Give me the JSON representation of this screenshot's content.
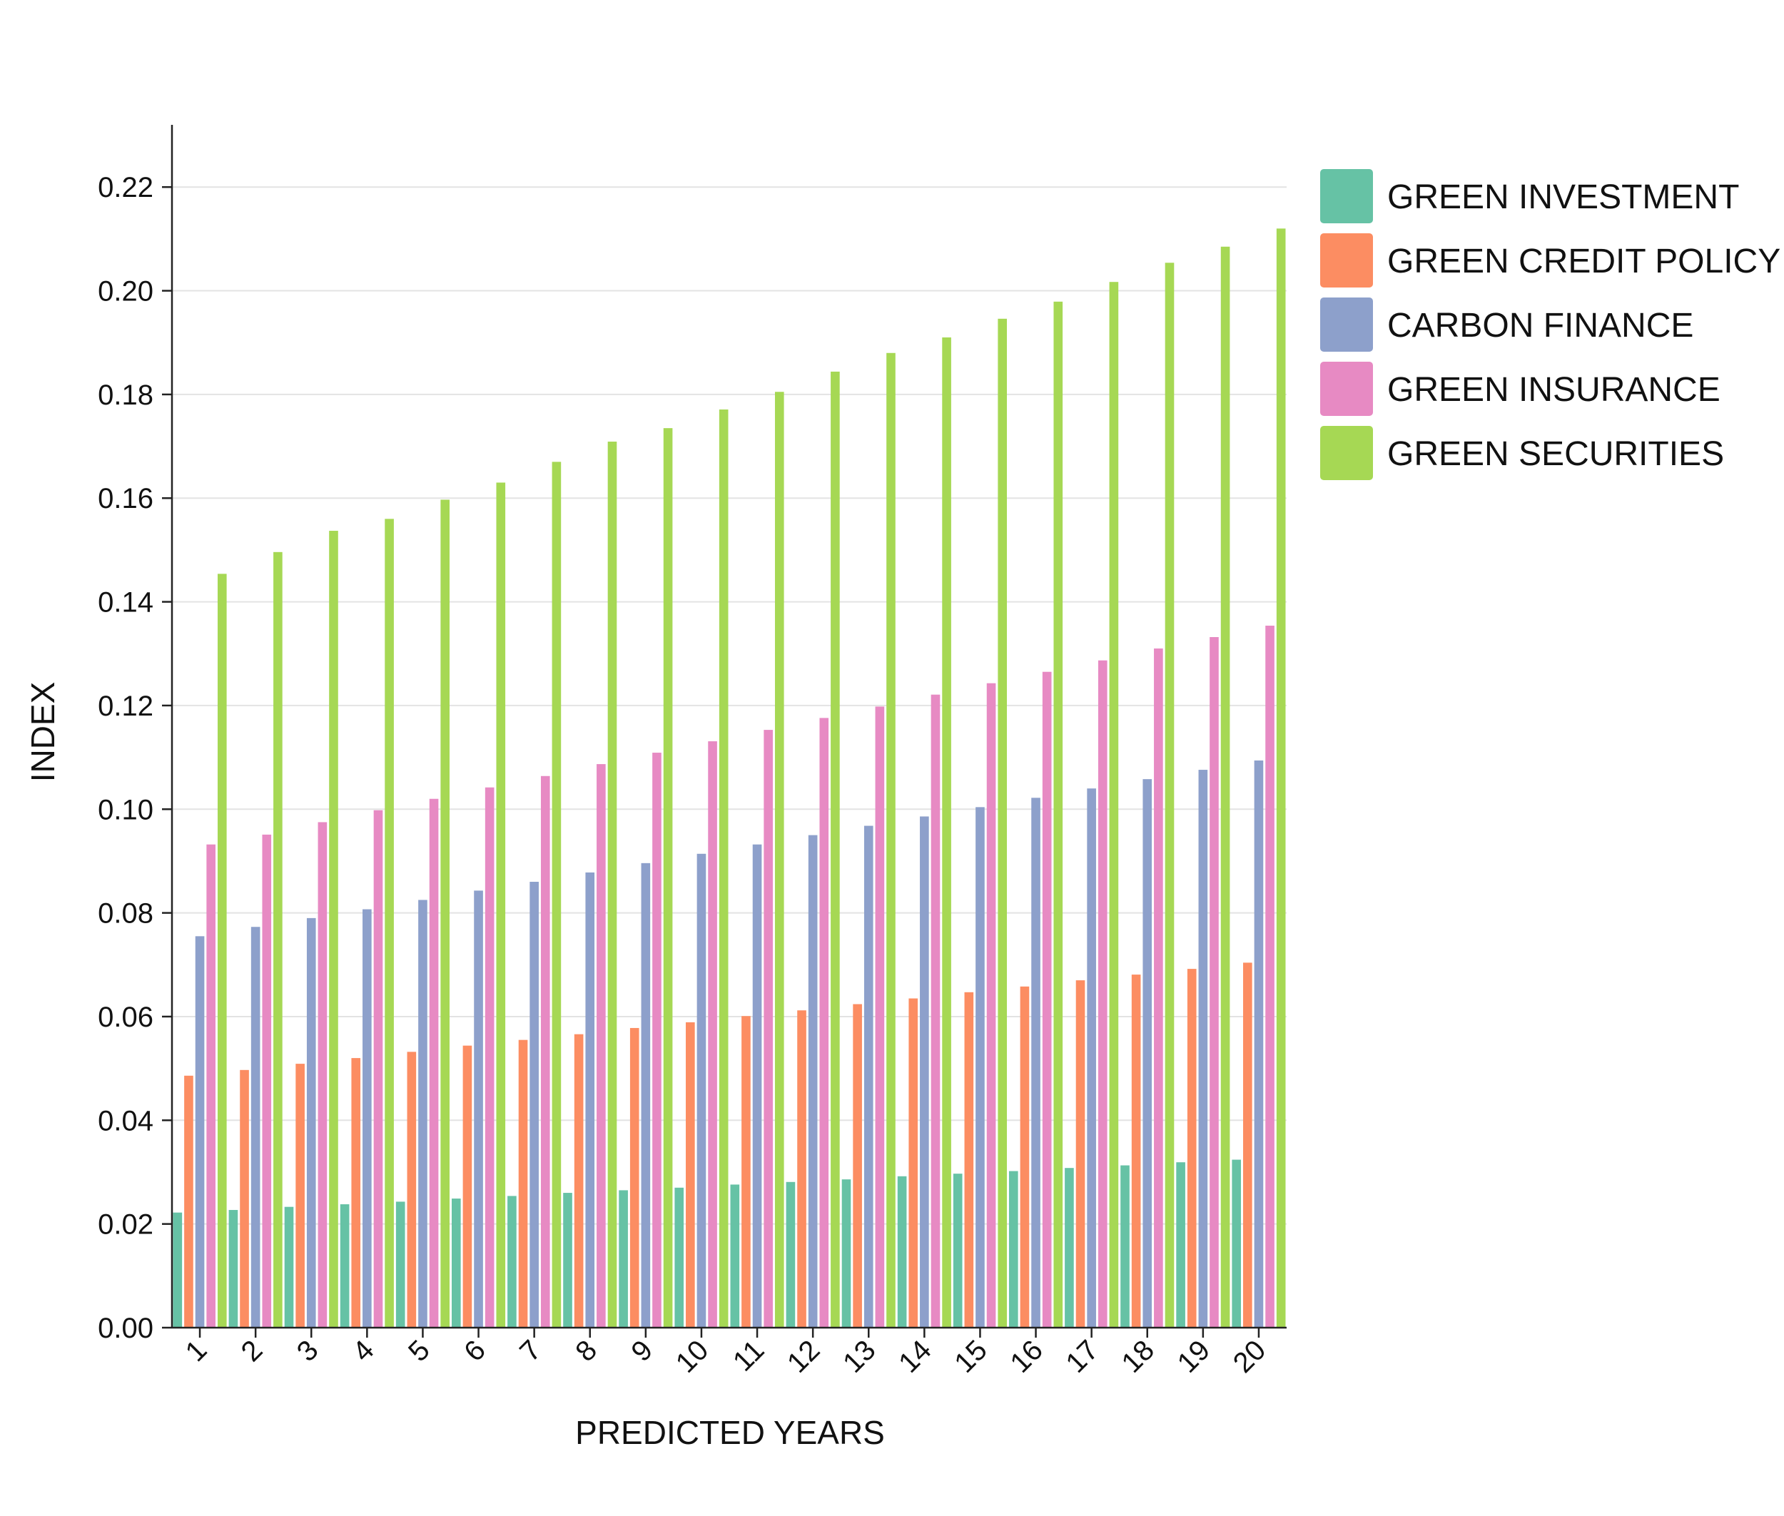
{
  "chart_data": {
    "type": "bar",
    "title": "",
    "xlabel": "PREDICTED YEARS",
    "ylabel": "INDEX",
    "ylim": [
      0,
      0.232
    ],
    "yticks": [
      0.0,
      0.02,
      0.04,
      0.06,
      0.08,
      0.1,
      0.12,
      0.14,
      0.16,
      0.18,
      0.2,
      0.22
    ],
    "ytick_labels": [
      "0.00",
      "0.02",
      "0.04",
      "0.06",
      "0.08",
      "0.10",
      "0.12",
      "0.14",
      "0.16",
      "0.18",
      "0.20",
      "0.22"
    ],
    "grid": true,
    "legend_position": "top-right",
    "categories": [
      "1",
      "2",
      "3",
      "4",
      "5",
      "6",
      "7",
      "8",
      "9",
      "10",
      "11",
      "12",
      "13",
      "14",
      "15",
      "16",
      "17",
      "18",
      "19",
      "20"
    ],
    "series": [
      {
        "name": "GREEN INVESTMENT",
        "color": "#66c2a5",
        "values": [
          0.0222,
          0.0227,
          0.0233,
          0.0238,
          0.0243,
          0.0249,
          0.0254,
          0.026,
          0.0265,
          0.027,
          0.0276,
          0.0281,
          0.0286,
          0.0292,
          0.0297,
          0.0302,
          0.0308,
          0.0313,
          0.0319,
          0.0324
        ]
      },
      {
        "name": "GREEN CREDIT POLICY",
        "color": "#fc8d62",
        "values": [
          0.0486,
          0.0497,
          0.0509,
          0.052,
          0.0532,
          0.0544,
          0.0555,
          0.0566,
          0.0578,
          0.0589,
          0.0601,
          0.0612,
          0.0624,
          0.0635,
          0.0647,
          0.0658,
          0.067,
          0.0681,
          0.0692,
          0.0704
        ]
      },
      {
        "name": "CARBON FINANCE",
        "color": "#8da0cb",
        "values": [
          0.0755,
          0.0773,
          0.079,
          0.0807,
          0.0825,
          0.0843,
          0.086,
          0.0878,
          0.0896,
          0.0914,
          0.0932,
          0.095,
          0.0968,
          0.0986,
          0.1004,
          0.1022,
          0.104,
          0.1058,
          0.1076,
          0.1094
        ]
      },
      {
        "name": "GREEN INSURANCE",
        "color": "#e78ac3",
        "values": [
          0.0932,
          0.0951,
          0.0975,
          0.0998,
          0.102,
          0.1042,
          0.1064,
          0.1087,
          0.1109,
          0.1131,
          0.1153,
          0.1176,
          0.1198,
          0.1221,
          0.1243,
          0.1265,
          0.1287,
          0.131,
          0.1332,
          0.1354
        ]
      },
      {
        "name": "GREEN SECURITIES",
        "color": "#a6d854",
        "values": [
          0.1454,
          0.1496,
          0.1537,
          0.156,
          0.1597,
          0.163,
          0.167,
          0.1709,
          0.1735,
          0.1771,
          0.1805,
          0.1844,
          0.188,
          0.191,
          0.1946,
          0.1979,
          0.2017,
          0.2054,
          0.2085,
          0.212
        ]
      }
    ]
  }
}
